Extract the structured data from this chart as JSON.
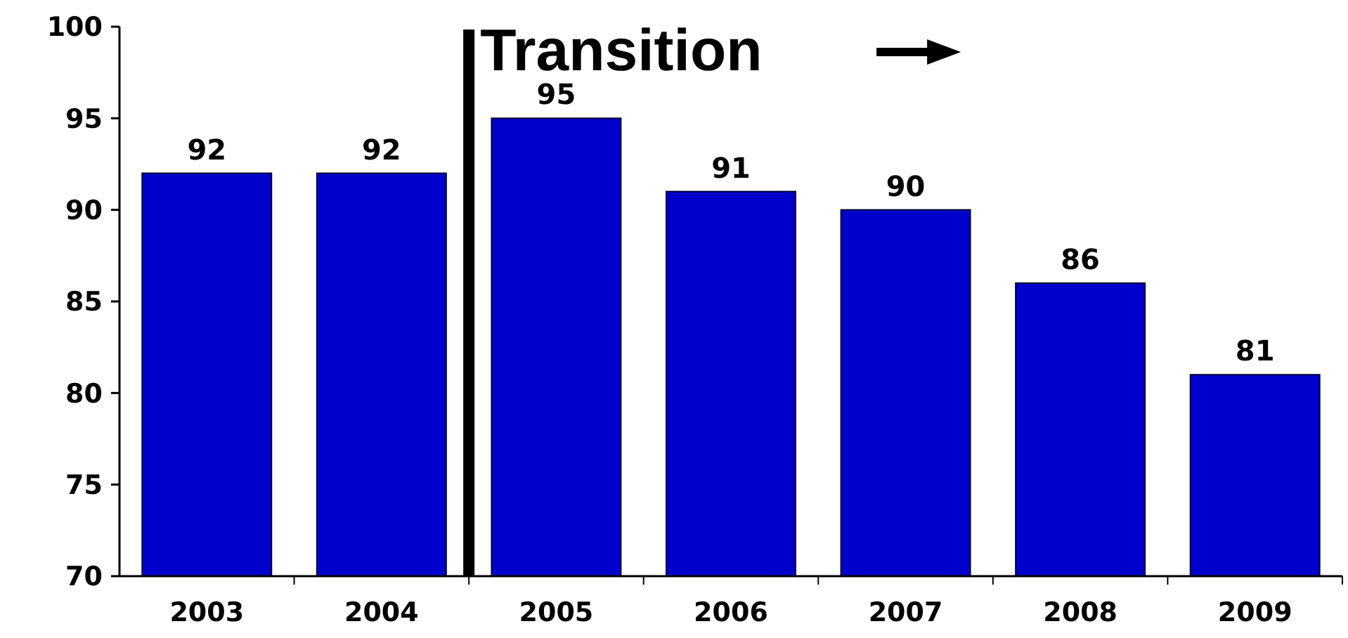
{
  "chart_data": {
    "type": "bar",
    "categories": [
      "2003",
      "2004",
      "2005",
      "2006",
      "2007",
      "2008",
      "2009"
    ],
    "values": [
      92,
      92,
      95,
      91,
      90,
      86,
      81
    ],
    "color": "#0000cc",
    "ylim": [
      70,
      100
    ],
    "yticks": [
      70,
      75,
      80,
      85,
      90,
      95,
      100
    ],
    "data_labels": true,
    "grid": false,
    "annotations": [
      "Transition"
    ]
  }
}
